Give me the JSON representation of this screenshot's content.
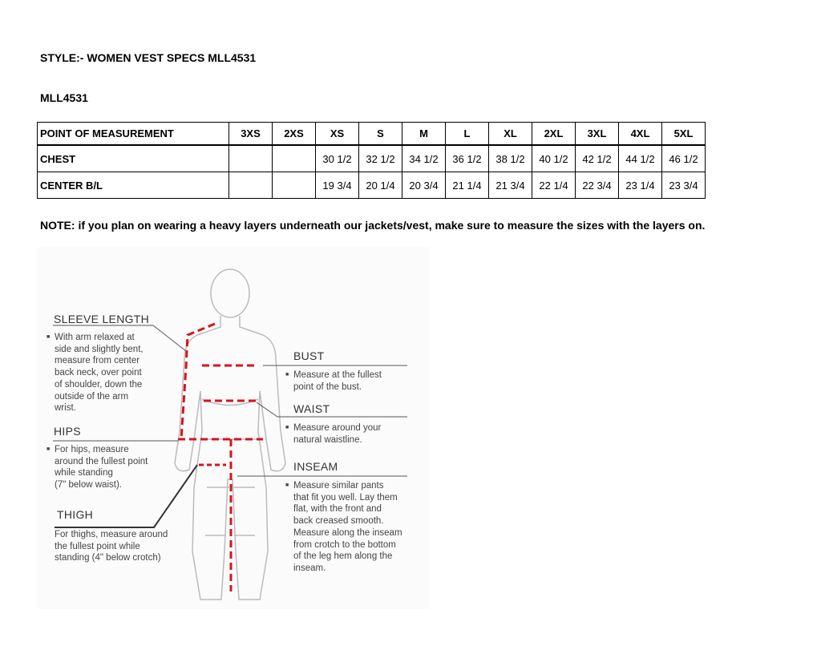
{
  "style_title": "STYLE:- WOMEN VEST SPECS  MLL4531",
  "style_code": "MLL4531",
  "table": {
    "headers": [
      "POINT OF MEASUREMENT",
      "3XS",
      "2XS",
      "XS",
      "S",
      "M",
      "L",
      "XL",
      "2XL",
      "3XL",
      "4XL",
      "5XL"
    ],
    "rows": [
      [
        "CHEST",
        "",
        "",
        "30 1/2",
        "32 1/2",
        "34 1/2",
        "36 1/2",
        "38 1/2",
        "40 1/2",
        "42 1/2",
        "44 1/2",
        "46 1/2"
      ],
      [
        "CENTER B/L",
        "",
        "",
        "19 3/4",
        "20 1/4",
        "20 3/4",
        "21 1/4",
        "21 3/4",
        "22 1/4",
        "22 3/4",
        "23 1/4",
        "23 3/4"
      ]
    ]
  },
  "note": "NOTE: if you plan on wearing a heavy layers underneath our jackets/vest, make sure to measure the sizes with the layers on.",
  "figure": {
    "sleeve": {
      "title": "SLEEVE LENGTH",
      "text": "With arm relaxed at\nside and slightly bent,\nmeasure from center\nback neck, over point\nof shoulder, down the\noutside of the arm\nwrist."
    },
    "hips": {
      "title": "HIPS",
      "text": "For hips, measure\naround the fullest point\nwhile standing\n(7\" below waist)."
    },
    "thigh": {
      "title": "THIGH",
      "text": "For thighs, measure around\nthe fullest point while\nstanding (4\" below crotch)"
    },
    "bust": {
      "title": "BUST",
      "text": "Measure at the fullest\npoint of the bust."
    },
    "waist": {
      "title": "WAIST",
      "text": "Measure around your\nnatural waistline."
    },
    "inseam": {
      "title": "INSEAM",
      "text": "Measure similar pants\nthat fit you well. Lay them\nflat, with the front and\nback creased smooth.\nMeasure along the inseam\nfrom crotch to the bottom\nof the leg hem along the\ninseam."
    },
    "measure_line_color": "#d6141f"
  }
}
